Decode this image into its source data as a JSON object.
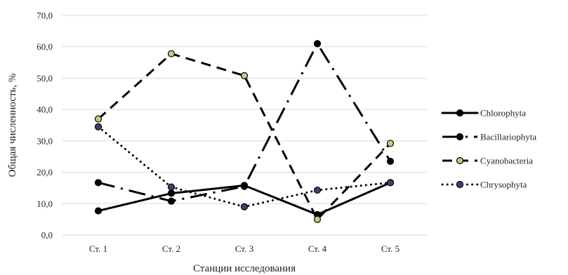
{
  "chart_data": {
    "type": "line",
    "categories": [
      "Ст. 1",
      "Ст. 2",
      "Ст. 3",
      "Ст. 4",
      "Ст. 5"
    ],
    "xlabel": "Станции исследования",
    "ylabel": "Общая численность, %",
    "ylim": [
      0,
      70
    ],
    "ytick_step": 10,
    "ytick_labels": [
      "0,0",
      "10,0",
      "20,0",
      "30,0",
      "40,0",
      "50,0",
      "60,0",
      "70,0"
    ],
    "grid": true,
    "legend_position": "right",
    "series": [
      {
        "name": "Chlorophyta",
        "values": [
          7.7,
          13.3,
          15.8,
          6.5,
          16.7
        ],
        "style": "solid",
        "color": "#000000",
        "marker_fill": "#000000"
      },
      {
        "name": "Bacillariophyta",
        "values": [
          16.7,
          10.8,
          15.5,
          61.0,
          23.5
        ],
        "style": "dashdot",
        "color": "#000000",
        "marker_fill": "#000000"
      },
      {
        "name": "Cyanobacteria",
        "values": [
          37.0,
          57.8,
          50.8,
          5.0,
          29.2
        ],
        "style": "dashed",
        "color": "#000000",
        "marker_fill": "#c9c979"
      },
      {
        "name": "Chrysophyta",
        "values": [
          34.5,
          15.3,
          9.0,
          14.3,
          16.7
        ],
        "style": "dotted",
        "color": "#000000",
        "marker_fill": "#4a3d6b"
      }
    ]
  }
}
